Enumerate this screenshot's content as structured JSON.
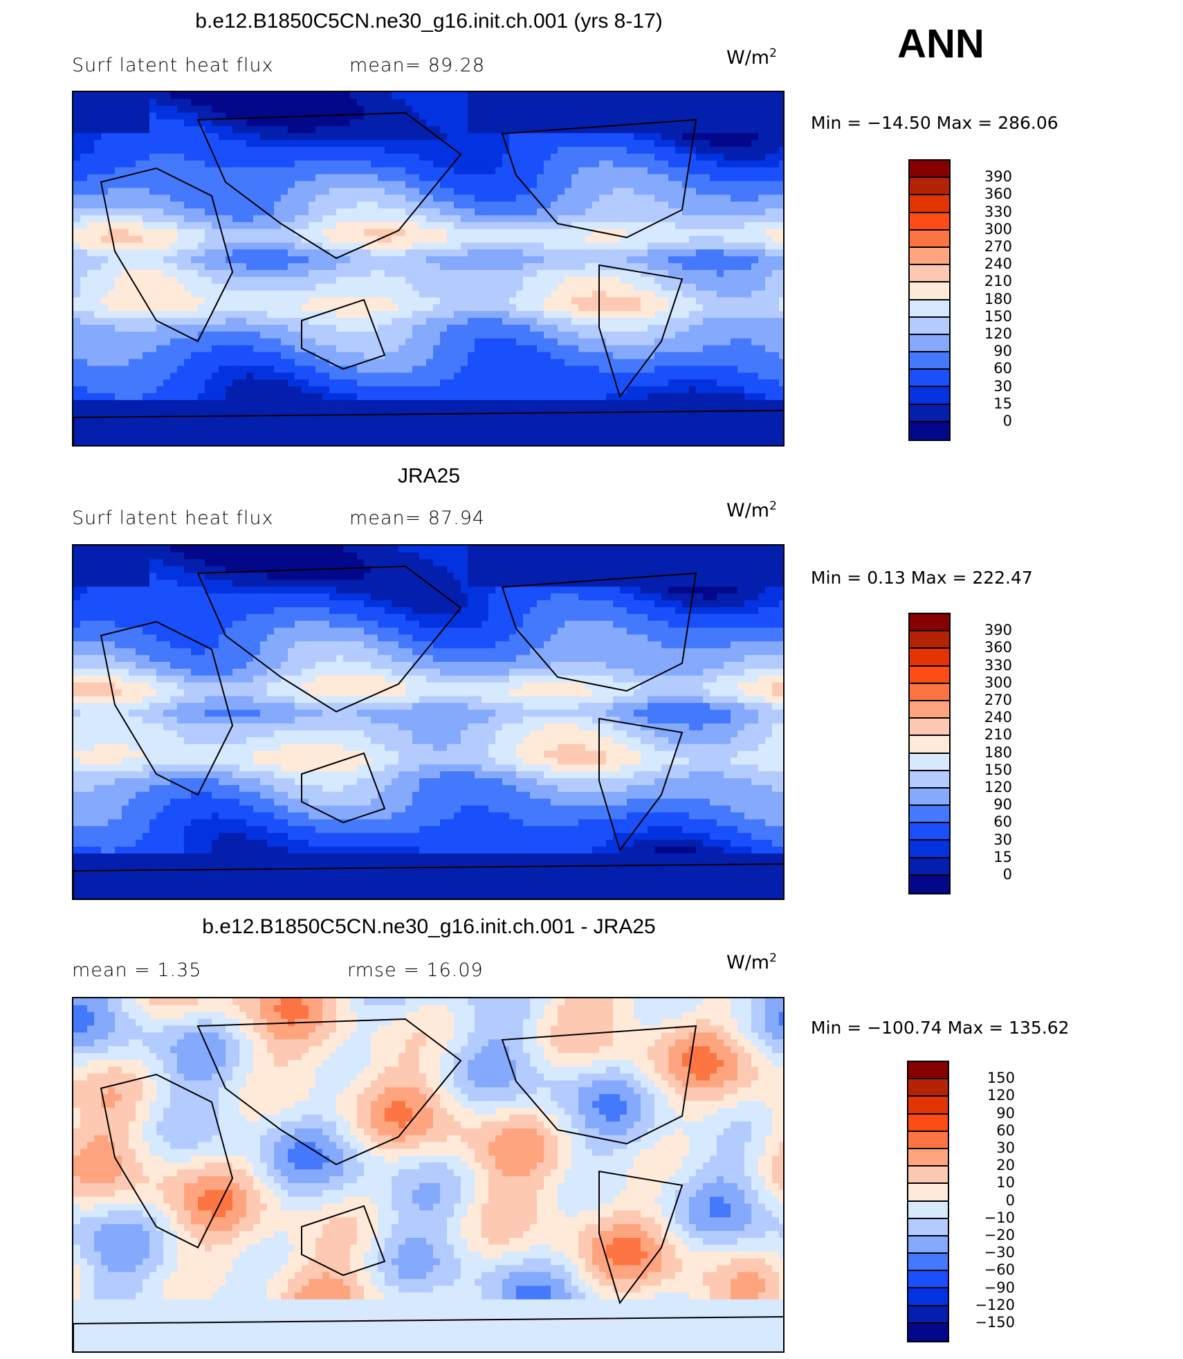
{
  "season": "ANN",
  "units_base": "W/m",
  "units_exp": "2",
  "panels": [
    {
      "title": "b.e12.B1850C5CN.ne30_g16.init.ch.001 (yrs 8-17)",
      "left_label": "Surf latent heat flux",
      "stat_label": "mean=  89.28",
      "minmax": "Min = −14.50 Max = 286.06",
      "kind": "field"
    },
    {
      "title": "JRA25",
      "left_label": "Surf latent heat flux",
      "stat_label": "mean=  87.94",
      "minmax": "Min =   0.13 Max = 222.47",
      "kind": "field"
    },
    {
      "title": "b.e12.B1850C5CN.ne30_g16.init.ch.001 - JRA25",
      "left_label": "mean =    1.35",
      "stat_label": "rmse =   16.09",
      "minmax": "Min = −100.74 Max = 135.62",
      "kind": "diff"
    }
  ],
  "colors": [
    "#870000",
    "#b52305",
    "#e33502",
    "#fd4d17",
    "#fd7542",
    "#fea580",
    "#fec9b2",
    "#ffeada",
    "#d6e9fe",
    "#b3cbfe",
    "#84a9fd",
    "#4479fd",
    "#1a4ffc",
    "#0332e0",
    "#041fae",
    "#03088b"
  ],
  "field_levels": [
    "390",
    "360",
    "330",
    "300",
    "270",
    "240",
    "210",
    "180",
    "150",
    "120",
    "90",
    "60",
    "30",
    "15",
    "0"
  ],
  "diff_levels": [
    "150",
    "120",
    "90",
    "60",
    "30",
    "20",
    "10",
    "0",
    "−10",
    "−20",
    "−30",
    "−60",
    "−90",
    "−120",
    "−150"
  ]
}
